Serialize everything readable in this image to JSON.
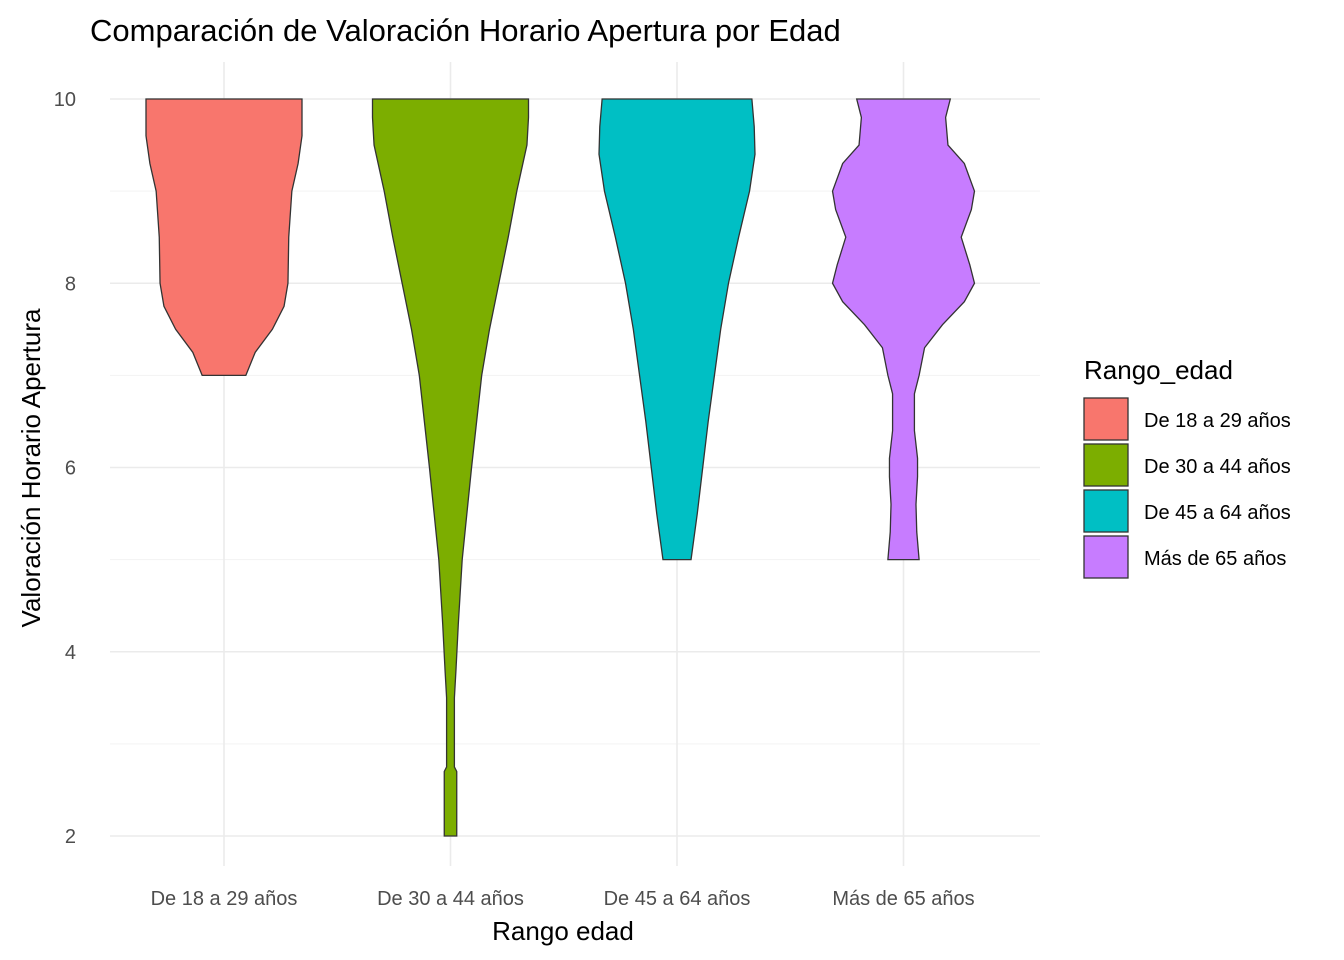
{
  "chart_data": {
    "type": "violin",
    "title": "Comparación de Valoración Horario Apertura por Edad",
    "xlabel": "Rango edad",
    "ylabel": "Valoración Horario Apertura",
    "ylim": [
      1.85,
      10.3
    ],
    "yticks": [
      2,
      4,
      6,
      8,
      10
    ],
    "grid": true,
    "legend": {
      "title": "Rango_edad",
      "placement": "right"
    },
    "categories": [
      "De 18 a 29 años",
      "De 30 a 44 años",
      "De 45 a 64 años",
      "Más de 65 años"
    ],
    "series": [
      {
        "name": "De 18 a 29 años",
        "color": "#F8766D",
        "min": 7,
        "max": 10,
        "profile": [
          [
            7.0,
            0.28
          ],
          [
            7.25,
            0.4
          ],
          [
            7.5,
            0.62
          ],
          [
            7.75,
            0.77
          ],
          [
            8.0,
            0.82
          ],
          [
            8.5,
            0.83
          ],
          [
            9.0,
            0.87
          ],
          [
            9.3,
            0.95
          ],
          [
            9.6,
            1.0
          ],
          [
            9.8,
            1.0
          ],
          [
            10.0,
            1.0
          ]
        ]
      },
      {
        "name": "De 30 a 44 años",
        "color": "#7CAE00",
        "min": 2,
        "max": 10,
        "profile": [
          [
            2.0,
            0.08
          ],
          [
            2.7,
            0.08
          ],
          [
            2.75,
            0.05
          ],
          [
            3.5,
            0.05
          ],
          [
            3.8,
            0.07
          ],
          [
            4.3,
            0.1
          ],
          [
            5.0,
            0.15
          ],
          [
            6.0,
            0.27
          ],
          [
            7.0,
            0.4
          ],
          [
            7.5,
            0.5
          ],
          [
            8.0,
            0.62
          ],
          [
            8.5,
            0.74
          ],
          [
            9.0,
            0.85
          ],
          [
            9.5,
            0.98
          ],
          [
            9.8,
            1.0
          ],
          [
            10.0,
            1.0
          ]
        ]
      },
      {
        "name": "De 45 a 64 años",
        "color": "#00BFC4",
        "min": 5,
        "max": 10,
        "profile": [
          [
            5.0,
            0.18
          ],
          [
            5.5,
            0.26
          ],
          [
            6.0,
            0.33
          ],
          [
            6.5,
            0.4
          ],
          [
            7.0,
            0.48
          ],
          [
            7.5,
            0.56
          ],
          [
            8.0,
            0.66
          ],
          [
            8.5,
            0.79
          ],
          [
            9.0,
            0.93
          ],
          [
            9.4,
            1.0
          ],
          [
            9.7,
            0.99
          ],
          [
            10.0,
            0.96
          ]
        ]
      },
      {
        "name": "Más de 65 años",
        "color": "#C77CFF",
        "min": 5,
        "max": 10,
        "profile": [
          [
            5.0,
            0.2
          ],
          [
            5.3,
            0.17
          ],
          [
            5.6,
            0.16
          ],
          [
            5.9,
            0.18
          ],
          [
            6.1,
            0.18
          ],
          [
            6.4,
            0.14
          ],
          [
            6.8,
            0.14
          ],
          [
            7.0,
            0.2
          ],
          [
            7.3,
            0.27
          ],
          [
            7.55,
            0.5
          ],
          [
            7.8,
            0.78
          ],
          [
            8.0,
            0.91
          ],
          [
            8.2,
            0.85
          ],
          [
            8.5,
            0.74
          ],
          [
            8.8,
            0.87
          ],
          [
            9.0,
            0.91
          ],
          [
            9.3,
            0.78
          ],
          [
            9.5,
            0.57
          ],
          [
            9.8,
            0.54
          ],
          [
            10.0,
            0.6
          ]
        ]
      }
    ]
  }
}
